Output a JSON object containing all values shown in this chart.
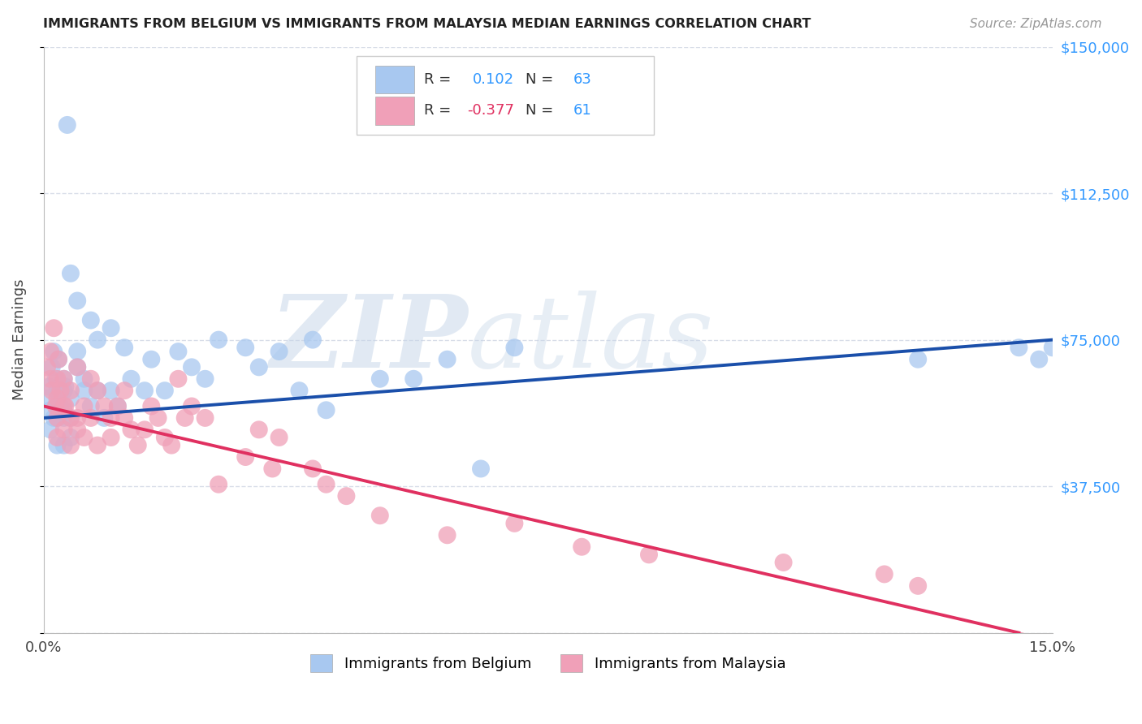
{
  "title": "IMMIGRANTS FROM BELGIUM VS IMMIGRANTS FROM MALAYSIA MEDIAN EARNINGS CORRELATION CHART",
  "source": "Source: ZipAtlas.com",
  "ylabel": "Median Earnings",
  "xlim": [
    0,
    0.15
  ],
  "ylim": [
    0,
    150000
  ],
  "yticks": [
    0,
    37500,
    75000,
    112500,
    150000
  ],
  "ytick_labels": [
    "",
    "$37,500",
    "$75,000",
    "$112,500",
    "$150,000"
  ],
  "xticks": [
    0.0,
    0.03,
    0.06,
    0.09,
    0.12,
    0.15
  ],
  "xtick_labels": [
    "0.0%",
    "",
    "",
    "",
    "",
    "15.0%"
  ],
  "background_color": "#ffffff",
  "grid_color": "#d8dde8",
  "watermark_zip": "ZIP",
  "watermark_atlas": "atlas",
  "belgium_color": "#a8c8f0",
  "malaysia_color": "#f0a0b8",
  "belgium_line_color": "#1a4faa",
  "malaysia_line_color": "#e03060",
  "R_belgium": 0.102,
  "N_belgium": 63,
  "R_malaysia": -0.377,
  "N_malaysia": 61,
  "belgium_x": [
    0.0005,
    0.0008,
    0.001,
    0.001,
    0.0012,
    0.0015,
    0.0015,
    0.0018,
    0.002,
    0.002,
    0.002,
    0.002,
    0.0022,
    0.0025,
    0.0025,
    0.003,
    0.003,
    0.003,
    0.003,
    0.003,
    0.0032,
    0.0035,
    0.004,
    0.004,
    0.004,
    0.004,
    0.005,
    0.005,
    0.005,
    0.006,
    0.006,
    0.007,
    0.007,
    0.008,
    0.008,
    0.009,
    0.01,
    0.01,
    0.011,
    0.012,
    0.013,
    0.015,
    0.016,
    0.018,
    0.02,
    0.022,
    0.024,
    0.026,
    0.03,
    0.032,
    0.035,
    0.038,
    0.04,
    0.042,
    0.05,
    0.055,
    0.06,
    0.065,
    0.07,
    0.13,
    0.145,
    0.148,
    0.15
  ],
  "belgium_y": [
    60000,
    63000,
    57000,
    52000,
    68000,
    72000,
    55000,
    65000,
    58000,
    48000,
    62000,
    55000,
    70000,
    63000,
    58000,
    57000,
    62000,
    48000,
    55000,
    65000,
    63000,
    130000,
    92000,
    60000,
    55000,
    50000,
    85000,
    68000,
    72000,
    65000,
    62000,
    80000,
    58000,
    75000,
    62000,
    55000,
    78000,
    62000,
    58000,
    73000,
    65000,
    62000,
    70000,
    62000,
    72000,
    68000,
    65000,
    75000,
    73000,
    68000,
    72000,
    62000,
    75000,
    57000,
    65000,
    65000,
    70000,
    42000,
    73000,
    70000,
    73000,
    70000,
    73000
  ],
  "malaysia_x": [
    0.0005,
    0.001,
    0.001,
    0.0012,
    0.0015,
    0.0018,
    0.002,
    0.002,
    0.002,
    0.002,
    0.0022,
    0.0025,
    0.003,
    0.003,
    0.003,
    0.0032,
    0.004,
    0.004,
    0.004,
    0.005,
    0.005,
    0.005,
    0.006,
    0.006,
    0.007,
    0.007,
    0.008,
    0.008,
    0.009,
    0.01,
    0.01,
    0.011,
    0.012,
    0.012,
    0.013,
    0.014,
    0.015,
    0.016,
    0.017,
    0.018,
    0.019,
    0.02,
    0.021,
    0.022,
    0.024,
    0.026,
    0.03,
    0.032,
    0.034,
    0.035,
    0.04,
    0.042,
    0.045,
    0.05,
    0.06,
    0.07,
    0.08,
    0.09,
    0.11,
    0.125,
    0.13
  ],
  "malaysia_y": [
    68000,
    72000,
    65000,
    62000,
    78000,
    58000,
    65000,
    60000,
    55000,
    50000,
    70000,
    62000,
    58000,
    52000,
    65000,
    58000,
    55000,
    48000,
    62000,
    55000,
    68000,
    52000,
    58000,
    50000,
    65000,
    55000,
    62000,
    48000,
    58000,
    55000,
    50000,
    58000,
    62000,
    55000,
    52000,
    48000,
    52000,
    58000,
    55000,
    50000,
    48000,
    65000,
    55000,
    58000,
    55000,
    38000,
    45000,
    52000,
    42000,
    50000,
    42000,
    38000,
    35000,
    30000,
    25000,
    28000,
    22000,
    20000,
    18000,
    15000,
    12000
  ]
}
